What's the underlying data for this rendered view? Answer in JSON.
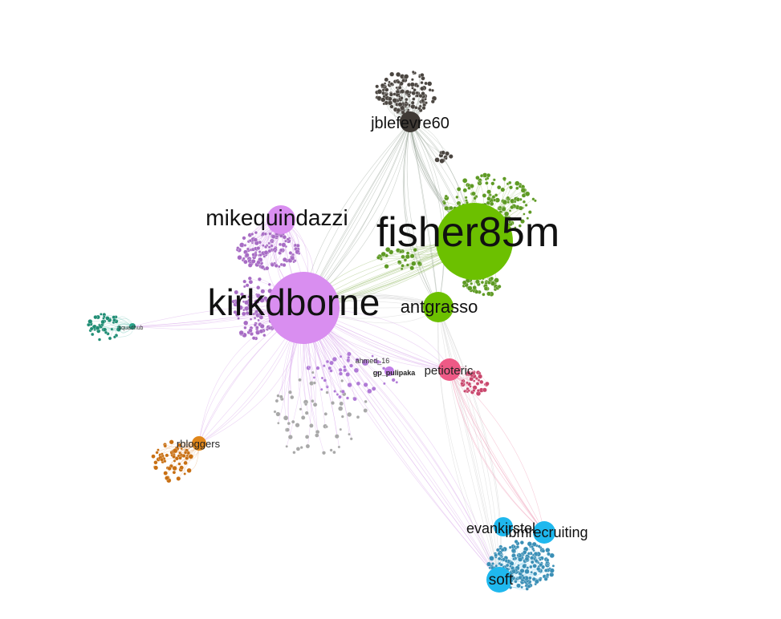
{
  "graph": {
    "hubs": [
      {
        "id": "jblefevre60",
        "label": "jblefevre60",
        "color": "#3f3a35"
      },
      {
        "id": "fisher85m",
        "label": "fisher85m",
        "color": "#6cc000"
      },
      {
        "id": "mikequindazzi",
        "label": "mikequindazzi",
        "color": "#d98ef0"
      },
      {
        "id": "kirkdborne",
        "label": "kirkdborne",
        "color": "#d98ef0"
      },
      {
        "id": "antgrasso",
        "label": "antgrasso",
        "color": "#6cc000"
      },
      {
        "id": "petiot_eric",
        "label": "petioteric",
        "color": "#ee5a86"
      },
      {
        "id": "rbloggers",
        "label": "rbloggers",
        "color": "#e0861a"
      },
      {
        "id": "squadhub",
        "label": "squadhub",
        "color": "#2aa38a"
      },
      {
        "id": "evankirstel",
        "label": "evankirstel",
        "color": "#1fb8ee"
      },
      {
        "id": "ibmrecruiting",
        "label": "ibmrecruiting",
        "color": "#1fb8ee"
      },
      {
        "id": "soft",
        "label": "soft",
        "color": "#1fb8ee"
      },
      {
        "id": "gp_pulipaka",
        "label": "gp_pulipaka",
        "color": "#c27fe8"
      },
      {
        "id": "ahmed_16",
        "label": "ahmed_16",
        "color": "#b07ad6"
      }
    ],
    "edge_colors": {
      "jblefevre60": "#9aa59a",
      "fisher85m": "#9cc070",
      "kirkdborne": "#d9a8ec",
      "mikequindazzi": "#d9a8ec",
      "rbloggers": "#e8a870",
      "squadhub": "#7cc9bb",
      "soft": "#8fd6f2",
      "petiot_eric": "#f09ab6"
    }
  }
}
